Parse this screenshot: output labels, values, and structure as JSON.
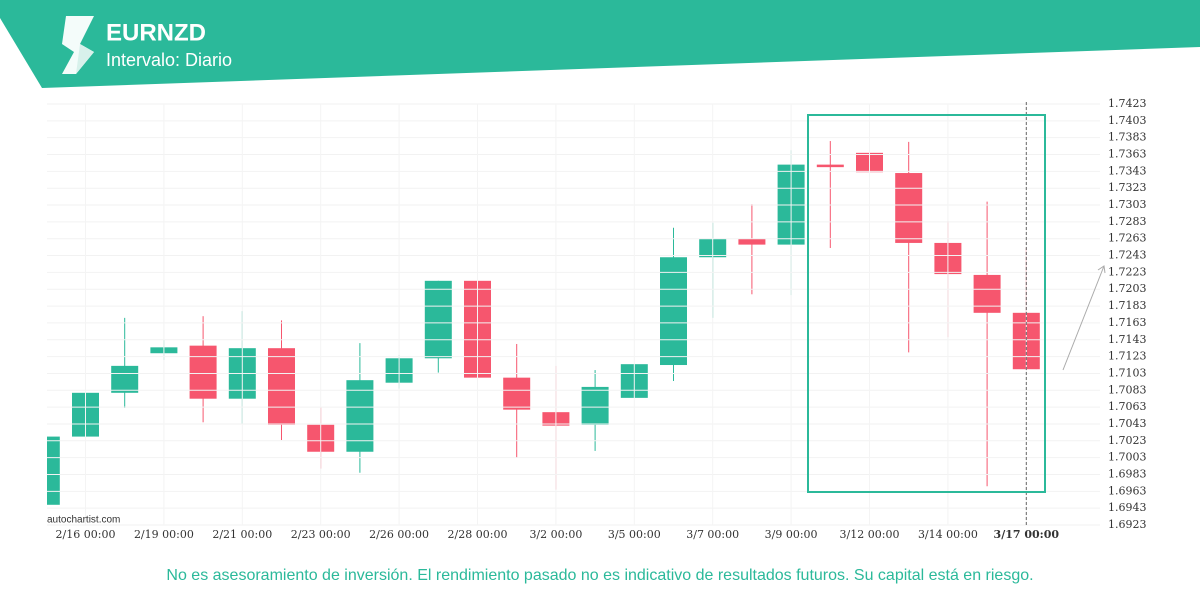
{
  "chart_data": {
    "type": "candlestick",
    "title": "EURNZD",
    "subtitle": "Intervalo: Diario",
    "categories": [
      null,
      "2/16 00:00",
      null,
      "2/19 00:00",
      null,
      "2/21 00:00",
      null,
      "2/23 00:00",
      null,
      "2/26 00:00",
      null,
      "2/28 00:00",
      null,
      "3/2 00:00",
      null,
      "3/5 00:00",
      null,
      "3/7 00:00",
      null,
      "3/9 00:00",
      null,
      "3/12 00:00",
      null,
      "3/14 00:00",
      null,
      "3/17 00:00"
    ],
    "open": [
      1.6947,
      1.7028,
      1.708,
      1.7127,
      1.7136,
      1.7073,
      1.7133,
      1.7042,
      1.701,
      1.7092,
      1.7121,
      1.7213,
      1.7098,
      1.7057,
      1.7042,
      1.7074,
      1.7113,
      1.7241,
      1.7263,
      1.7256,
      1.7351,
      1.7365,
      1.7341,
      1.7258,
      1.722,
      1.7175
    ],
    "high": [
      1.7028,
      1.7095,
      1.7169,
      1.7143,
      1.7171,
      1.7177,
      1.7166,
      1.7063,
      1.7139,
      1.7125,
      1.7213,
      1.7288,
      1.7138,
      1.7112,
      1.7107,
      1.7114,
      1.7276,
      1.7282,
      1.7304,
      1.7368,
      1.7379,
      1.7402,
      1.7378,
      1.7284,
      1.7307,
      1.7252
    ],
    "low": [
      1.6947,
      1.6969,
      1.7062,
      1.7119,
      1.7045,
      1.7043,
      1.7024,
      1.699,
      1.6985,
      1.7085,
      1.7104,
      1.7083,
      1.7003,
      1.6965,
      1.7011,
      1.7074,
      1.7094,
      1.7169,
      1.7197,
      1.7196,
      1.7252,
      1.7327,
      1.7128,
      1.7146,
      1.6969,
      1.7108
    ],
    "close": [
      1.7028,
      1.708,
      1.7112,
      1.7134,
      1.7073,
      1.7133,
      1.7042,
      1.701,
      1.7095,
      1.7121,
      1.7213,
      1.7098,
      1.706,
      1.7041,
      1.7087,
      1.7114,
      1.7241,
      1.7263,
      1.7256,
      1.7351,
      1.7348,
      1.7342,
      1.7258,
      1.7221,
      1.7175,
      1.7108
    ],
    "up_color": "#2bb99a",
    "down_color": "#f6566e",
    "ylim": [
      1.6923,
      1.7423
    ],
    "yticks": [
      1.6923,
      1.6943,
      1.6963,
      1.6983,
      1.7003,
      1.7023,
      1.7043,
      1.7063,
      1.7083,
      1.7103,
      1.7123,
      1.7143,
      1.7163,
      1.7183,
      1.7203,
      1.7223,
      1.7243,
      1.7263,
      1.7283,
      1.7303,
      1.7323,
      1.7343,
      1.7363,
      1.7383,
      1.7403,
      1.7423
    ],
    "grid": true
  },
  "watermark": "autochartist.com",
  "disclaimer": "No es asesoramiento de inversión. El rendimiento pasado no es indicativo de resultados futuros. Su capital está en riesgo."
}
